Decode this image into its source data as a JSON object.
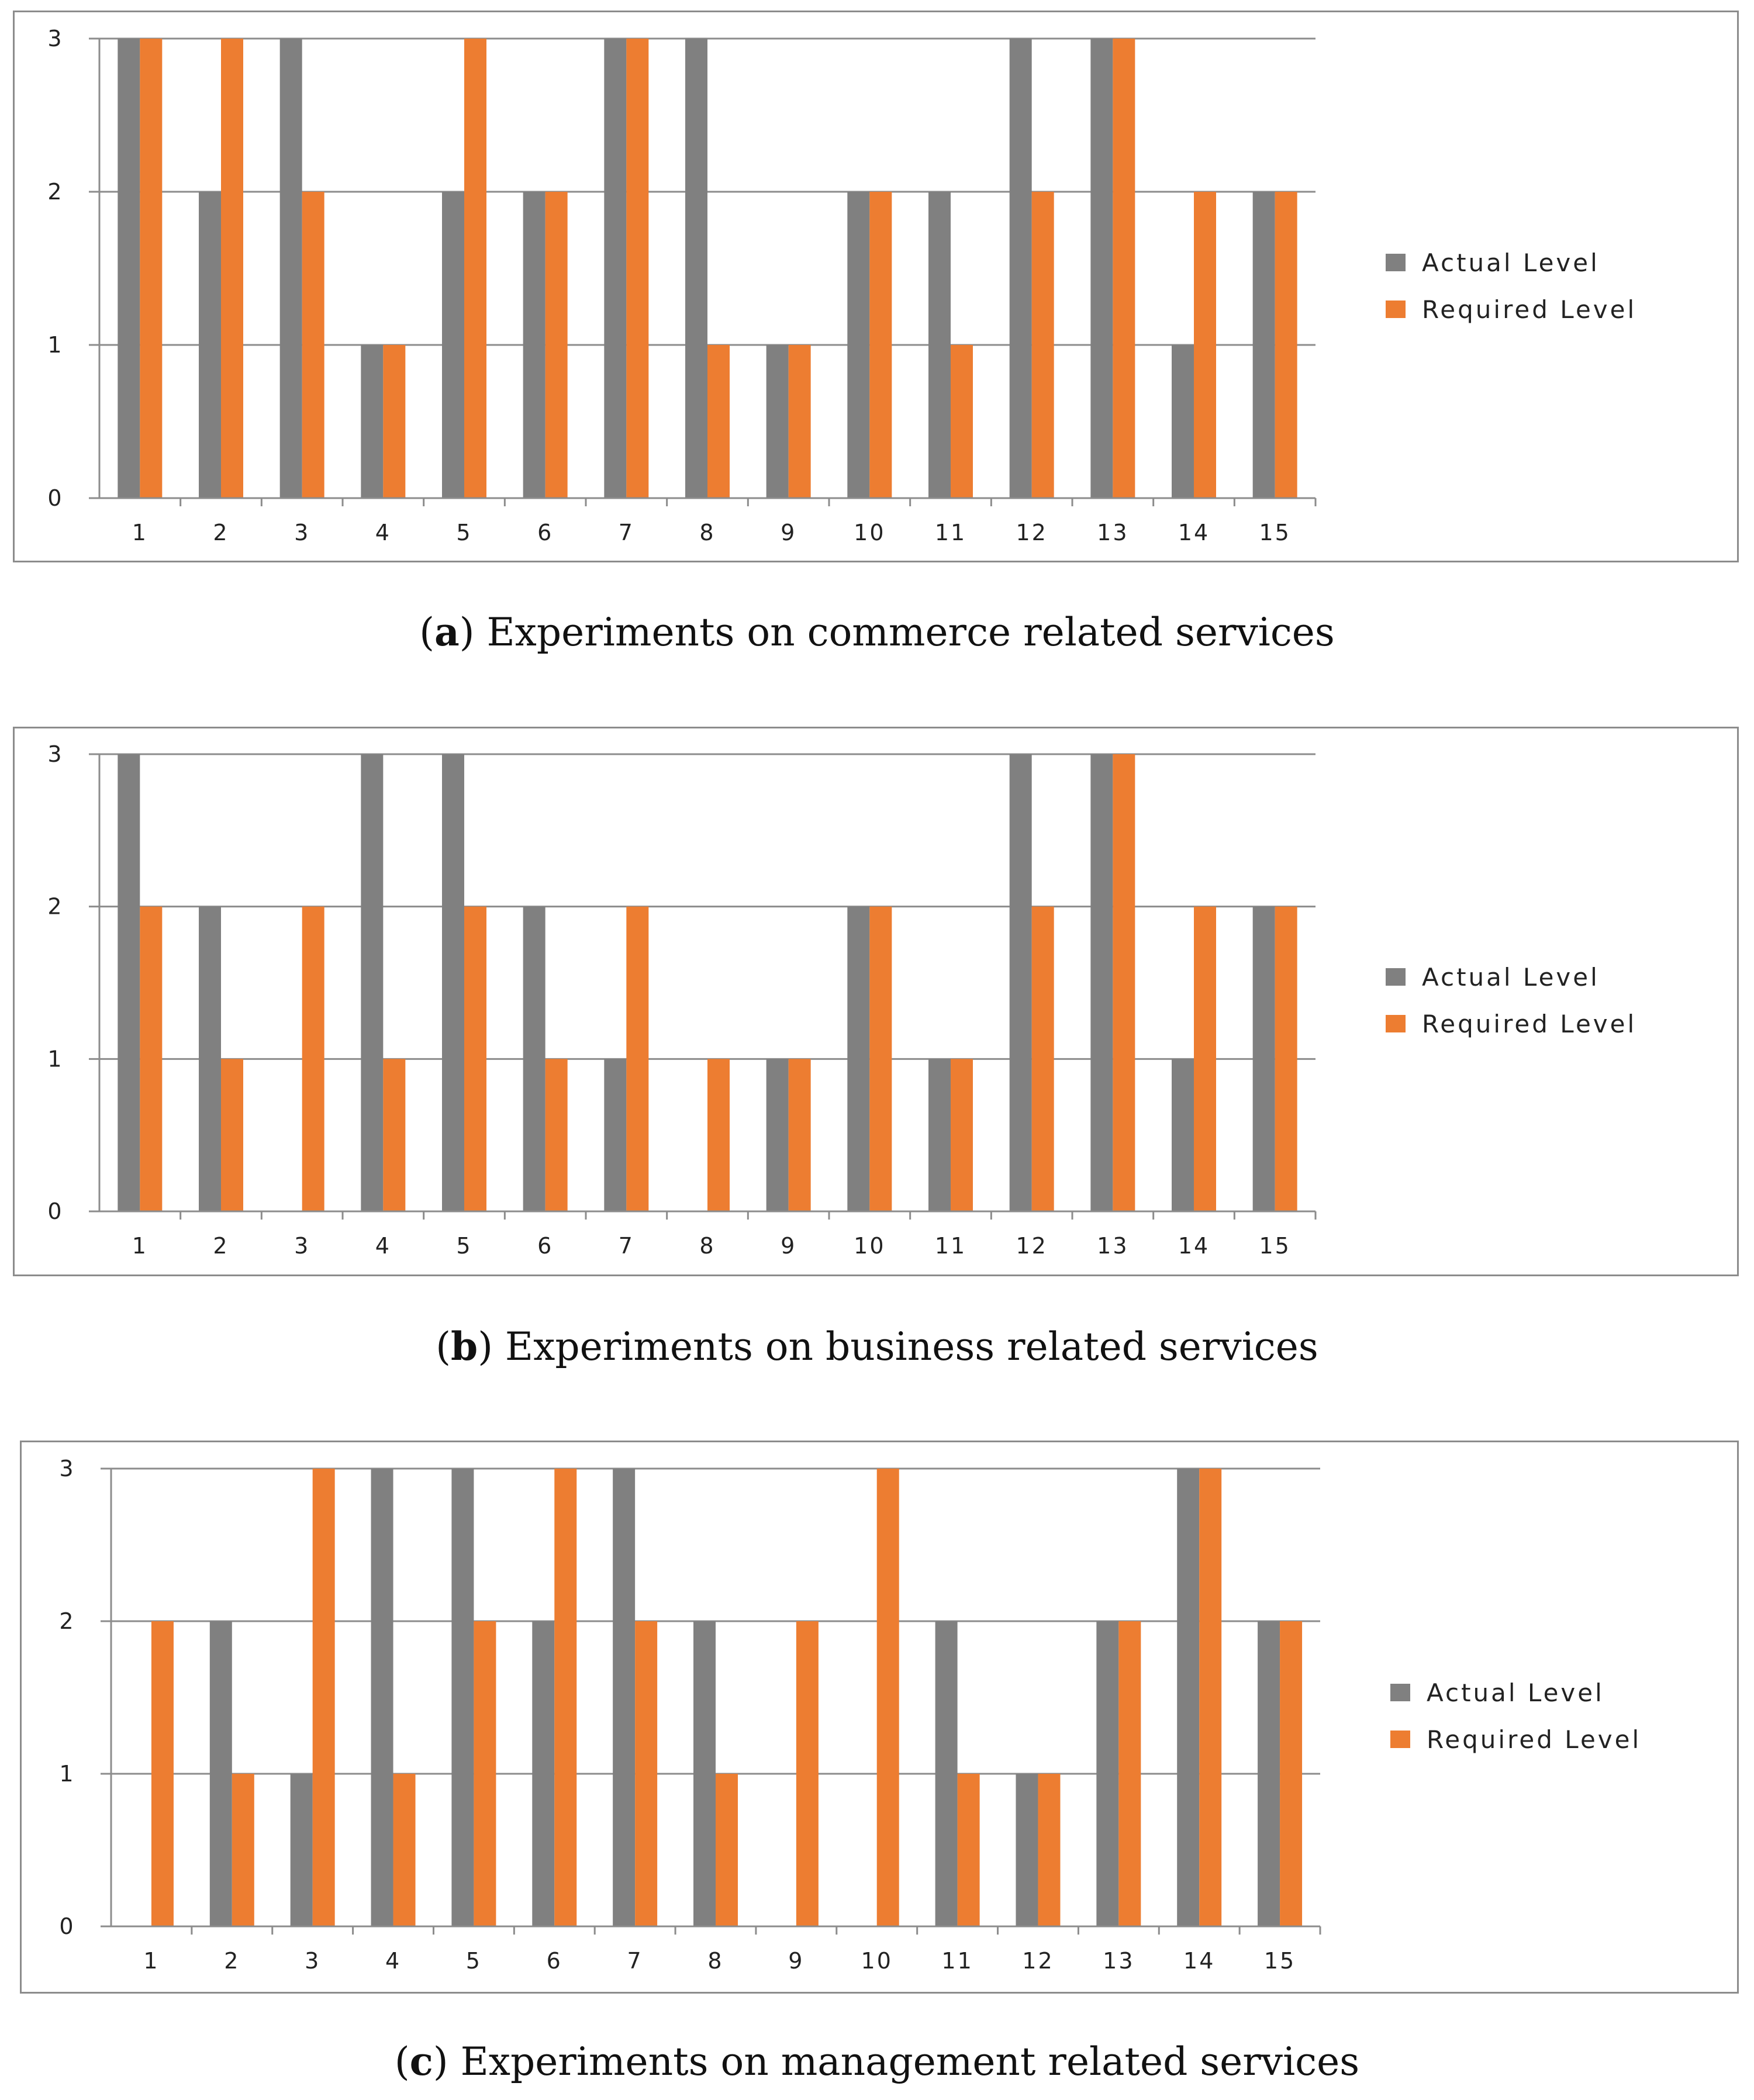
{
  "colors": {
    "actual": "#808080",
    "required": "#ED7D31",
    "grid": "#8c8c8c",
    "axis": "#8c8c8c"
  },
  "chart_data": [
    {
      "type": "bar",
      "panel_label": "a",
      "caption": "Experiments on commerce related services",
      "categories": [
        "1",
        "2",
        "3",
        "4",
        "5",
        "6",
        "7",
        "8",
        "9",
        "10",
        "11",
        "12",
        "13",
        "14",
        "15"
      ],
      "ylim": [
        0,
        3
      ],
      "yticks": [
        "0",
        "1",
        "2",
        "3"
      ],
      "legend": "right",
      "grid": true,
      "series": [
        {
          "name": "Actual Level",
          "values": [
            3,
            2,
            3,
            1,
            2,
            2,
            3,
            3,
            1,
            2,
            2,
            3,
            3,
            1,
            2
          ]
        },
        {
          "name": "Required Level",
          "values": [
            3,
            3,
            2,
            1,
            3,
            2,
            3,
            1,
            1,
            2,
            1,
            2,
            3,
            2,
            2
          ]
        }
      ]
    },
    {
      "type": "bar",
      "panel_label": "b",
      "caption": "Experiments on business related services",
      "categories": [
        "1",
        "2",
        "3",
        "4",
        "5",
        "6",
        "7",
        "8",
        "9",
        "10",
        "11",
        "12",
        "13",
        "14",
        "15"
      ],
      "ylim": [
        0,
        3
      ],
      "yticks": [
        "0",
        "1",
        "2",
        "3"
      ],
      "legend": "right",
      "grid": true,
      "series": [
        {
          "name": "Actual Level",
          "values": [
            3,
            2,
            0,
            3,
            3,
            2,
            1,
            0,
            1,
            2,
            1,
            3,
            3,
            1,
            2
          ]
        },
        {
          "name": "Required Level",
          "values": [
            2,
            1,
            2,
            1,
            2,
            1,
            2,
            1,
            1,
            2,
            1,
            2,
            3,
            2,
            2
          ]
        }
      ]
    },
    {
      "type": "bar",
      "panel_label": "c",
      "caption": "Experiments on management related services",
      "categories": [
        "1",
        "2",
        "3",
        "4",
        "5",
        "6",
        "7",
        "8",
        "9",
        "10",
        "11",
        "12",
        "13",
        "14",
        "15"
      ],
      "ylim": [
        0,
        3
      ],
      "yticks": [
        "0",
        "1",
        "2",
        "3"
      ],
      "legend": "right",
      "grid": true,
      "series": [
        {
          "name": "Actual Level",
          "values": [
            0,
            2,
            1,
            3,
            3,
            2,
            3,
            2,
            0,
            0,
            2,
            1,
            2,
            3,
            2
          ]
        },
        {
          "name": "Required Level",
          "values": [
            2,
            1,
            3,
            1,
            2,
            3,
            2,
            1,
            2,
            3,
            1,
            1,
            2,
            3,
            2
          ]
        }
      ]
    }
  ]
}
